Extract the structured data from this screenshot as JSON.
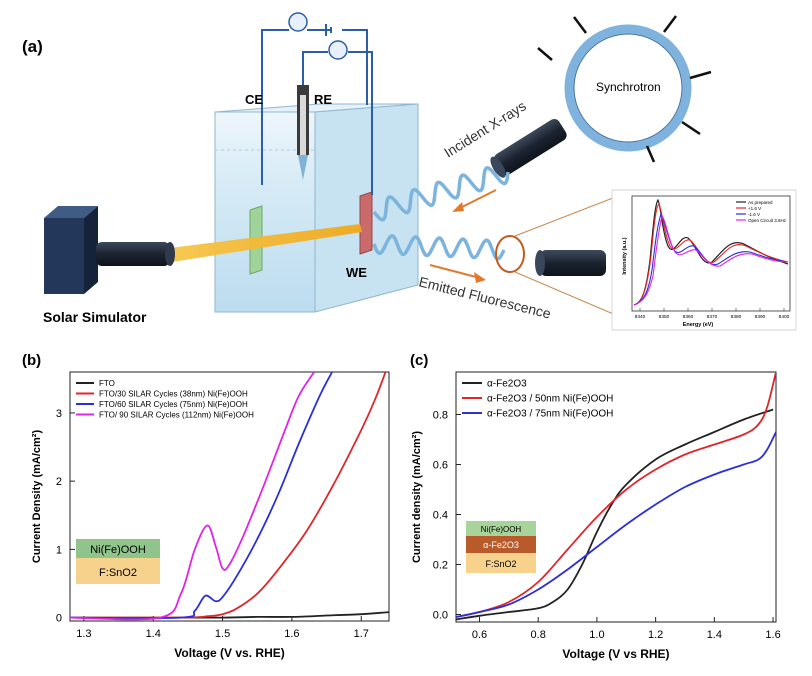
{
  "figure": {
    "panel_a": {
      "label": "(a)",
      "ce": "CE",
      "re": "RE",
      "we": "WE",
      "solar": "Solar Simulator",
      "synchrotron": "Synchrotron",
      "incident": "Incident X-rays",
      "emitted": "Emitted Fluorescence",
      "inset": {
        "xlabel": "Energy (eV)",
        "ylabel": "Intensity (a.u.)",
        "ticks": [
          "8340",
          "8350",
          "8360",
          "8370",
          "8380",
          "8390",
          "8400"
        ],
        "legend": [
          "As prepared",
          "+1.6 V",
          "-1.6 V",
          "Open Circuit 3.6Hz"
        ]
      }
    },
    "stack_b": [
      "Ni(Fe)OOH",
      "F:SnO2"
    ],
    "stack_c": [
      "Ni(Fe)OOH",
      "α-Fe2O3",
      "F:SnO2"
    ]
  },
  "colors": {
    "black": "#222222",
    "red": "#e0262b",
    "blue": "#2a2fd8",
    "magenta": "#e024e6",
    "ni_green": "#8fc58a",
    "fto_tan": "#f6d28c",
    "fe2o3_brown": "#b95a2a",
    "beam": "#f2b320",
    "wave": "#7db4dd",
    "tank": "#cde6f3",
    "syn_ring": "#7fb3dd"
  },
  "chart_data": [
    {
      "panel": "(b)",
      "type": "line",
      "xlabel": "Voltage (V vs. RHE)",
      "ylabel": "Current Density (mA/cm²)",
      "xlim": [
        1.28,
        1.74
      ],
      "ylim": [
        -0.05,
        3.6
      ],
      "xticks": [
        1.3,
        1.4,
        1.5,
        1.6,
        1.7
      ],
      "yticks": [
        0,
        1,
        2,
        3
      ],
      "legend_position": "top-left",
      "series": [
        {
          "name": "FTO",
          "color": "#222222",
          "x": [
            1.28,
            1.4,
            1.5,
            1.55,
            1.6,
            1.65,
            1.7,
            1.74
          ],
          "y": [
            0,
            0,
            0,
            0.01,
            0.01,
            0.03,
            0.05,
            0.08
          ]
        },
        {
          "name": "FTO/30 SILAR Cycles (38nm) Ni(Fe)OOH",
          "color": "#e0262b",
          "x": [
            1.28,
            1.44,
            1.48,
            1.5,
            1.52,
            1.55,
            1.58,
            1.62,
            1.66,
            1.7,
            1.72,
            1.735
          ],
          "y": [
            0,
            0,
            0.02,
            0.05,
            0.13,
            0.35,
            0.7,
            1.25,
            1.95,
            2.75,
            3.2,
            3.6
          ]
        },
        {
          "name": "FTO/60 SILAR Cycles (75nm) Ni(Fe)OOH",
          "color": "#2a2fd8",
          "x": [
            1.28,
            1.44,
            1.46,
            1.475,
            1.49,
            1.5,
            1.52,
            1.55,
            1.58,
            1.61,
            1.64,
            1.658
          ],
          "y": [
            0,
            0,
            0.1,
            0.32,
            0.24,
            0.3,
            0.6,
            1.15,
            1.8,
            2.55,
            3.25,
            3.6
          ]
        },
        {
          "name": "FTO/ 90 SILAR Cycles (112nm) Ni(Fe)OOH",
          "color": "#e024e6",
          "x": [
            1.28,
            1.41,
            1.44,
            1.46,
            1.478,
            1.49,
            1.5,
            1.51,
            1.53,
            1.56,
            1.59,
            1.61,
            1.632
          ],
          "y": [
            0,
            0,
            0.35,
            1.0,
            1.35,
            1.05,
            0.72,
            0.78,
            1.2,
            1.95,
            2.75,
            3.25,
            3.6
          ]
        }
      ]
    },
    {
      "panel": "(c)",
      "type": "line",
      "xlabel": "Voltage (V vs RHE)",
      "ylabel": "Current density (mA/cm²)",
      "xlim": [
        0.52,
        1.61
      ],
      "ylim": [
        -0.03,
        0.97
      ],
      "xticks": [
        0.6,
        0.8,
        1.0,
        1.2,
        1.4,
        1.6
      ],
      "yticks": [
        0.0,
        0.2,
        0.4,
        0.6,
        0.8
      ],
      "legend_position": "top-left",
      "series": [
        {
          "name": "α-Fe2O3",
          "color": "#222222",
          "x": [
            0.52,
            0.6,
            0.7,
            0.8,
            0.85,
            0.9,
            0.95,
            1.0,
            1.05,
            1.1,
            1.2,
            1.3,
            1.4,
            1.5,
            1.6
          ],
          "y": [
            -0.02,
            -0.005,
            0.01,
            0.025,
            0.05,
            0.1,
            0.2,
            0.33,
            0.44,
            0.52,
            0.62,
            0.68,
            0.73,
            0.78,
            0.82
          ]
        },
        {
          "name": "α-Fe2O3 / 50nm Ni(Fe)OOH",
          "color": "#e0262b",
          "x": [
            0.52,
            0.6,
            0.7,
            0.8,
            0.9,
            1.0,
            1.1,
            1.2,
            1.3,
            1.4,
            1.5,
            1.55,
            1.58,
            1.61
          ],
          "y": [
            -0.01,
            0.01,
            0.05,
            0.13,
            0.26,
            0.39,
            0.5,
            0.58,
            0.64,
            0.68,
            0.72,
            0.76,
            0.83,
            0.97
          ]
        },
        {
          "name": "α-Fe2O3 / 75nm Ni(Fe)OOH",
          "color": "#2a2fd8",
          "x": [
            0.52,
            0.6,
            0.7,
            0.8,
            0.9,
            1.0,
            1.1,
            1.2,
            1.3,
            1.4,
            1.5,
            1.55,
            1.58,
            1.61
          ],
          "y": [
            -0.01,
            0.01,
            0.04,
            0.1,
            0.18,
            0.27,
            0.36,
            0.44,
            0.51,
            0.56,
            0.6,
            0.62,
            0.66,
            0.73
          ]
        }
      ]
    }
  ]
}
